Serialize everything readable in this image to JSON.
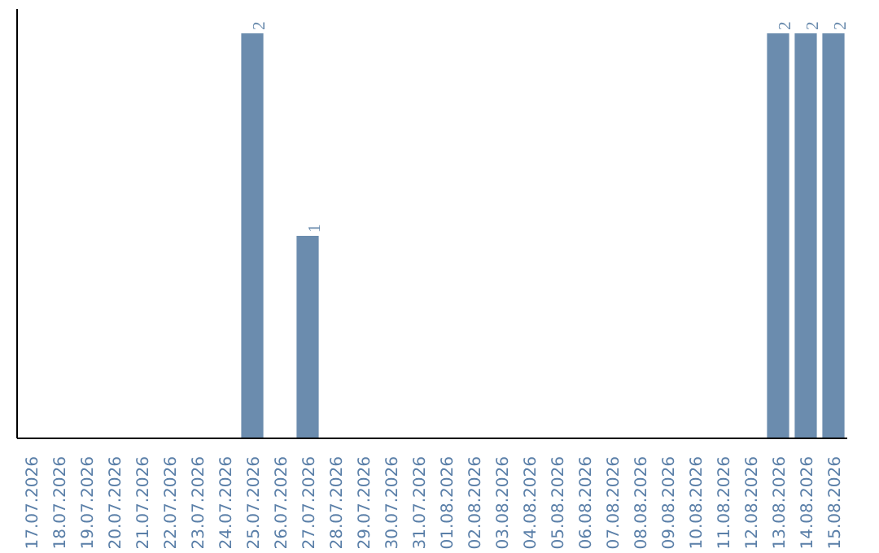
{
  "chart_data": {
    "type": "bar",
    "categories": [
      "17.07.2026",
      "18.07.2026",
      "19.07.2026",
      "20.07.2026",
      "21.07.2026",
      "22.07.2026",
      "23.07.2026",
      "24.07.2026",
      "25.07.2026",
      "26.07.2026",
      "27.07.2026",
      "28.07.2026",
      "29.07.2026",
      "30.07.2026",
      "31.07.2026",
      "01.08.2026",
      "02.08.2026",
      "03.08.2026",
      "04.08.2026",
      "05.08.2026",
      "06.08.2026",
      "07.08.2026",
      "08.08.2026",
      "09.08.2026",
      "10.08.2026",
      "11.08.2026",
      "12.08.2026",
      "13.08.2026",
      "14.08.2026",
      "15.08.2026"
    ],
    "values": [
      0,
      0,
      0,
      0,
      0,
      0,
      0,
      0,
      2,
      0,
      1,
      0,
      0,
      0,
      0,
      0,
      0,
      0,
      0,
      0,
      0,
      0,
      0,
      0,
      0,
      0,
      0,
      2,
      2,
      2
    ],
    "value_labels": [
      null,
      null,
      null,
      null,
      null,
      null,
      null,
      null,
      "2",
      null,
      "1",
      null,
      null,
      null,
      null,
      null,
      null,
      null,
      null,
      null,
      null,
      null,
      null,
      null,
      null,
      null,
      null,
      "2",
      "2",
      "2"
    ],
    "color": "#6b8cae",
    "grid": false,
    "tick_labels": "x"
  }
}
